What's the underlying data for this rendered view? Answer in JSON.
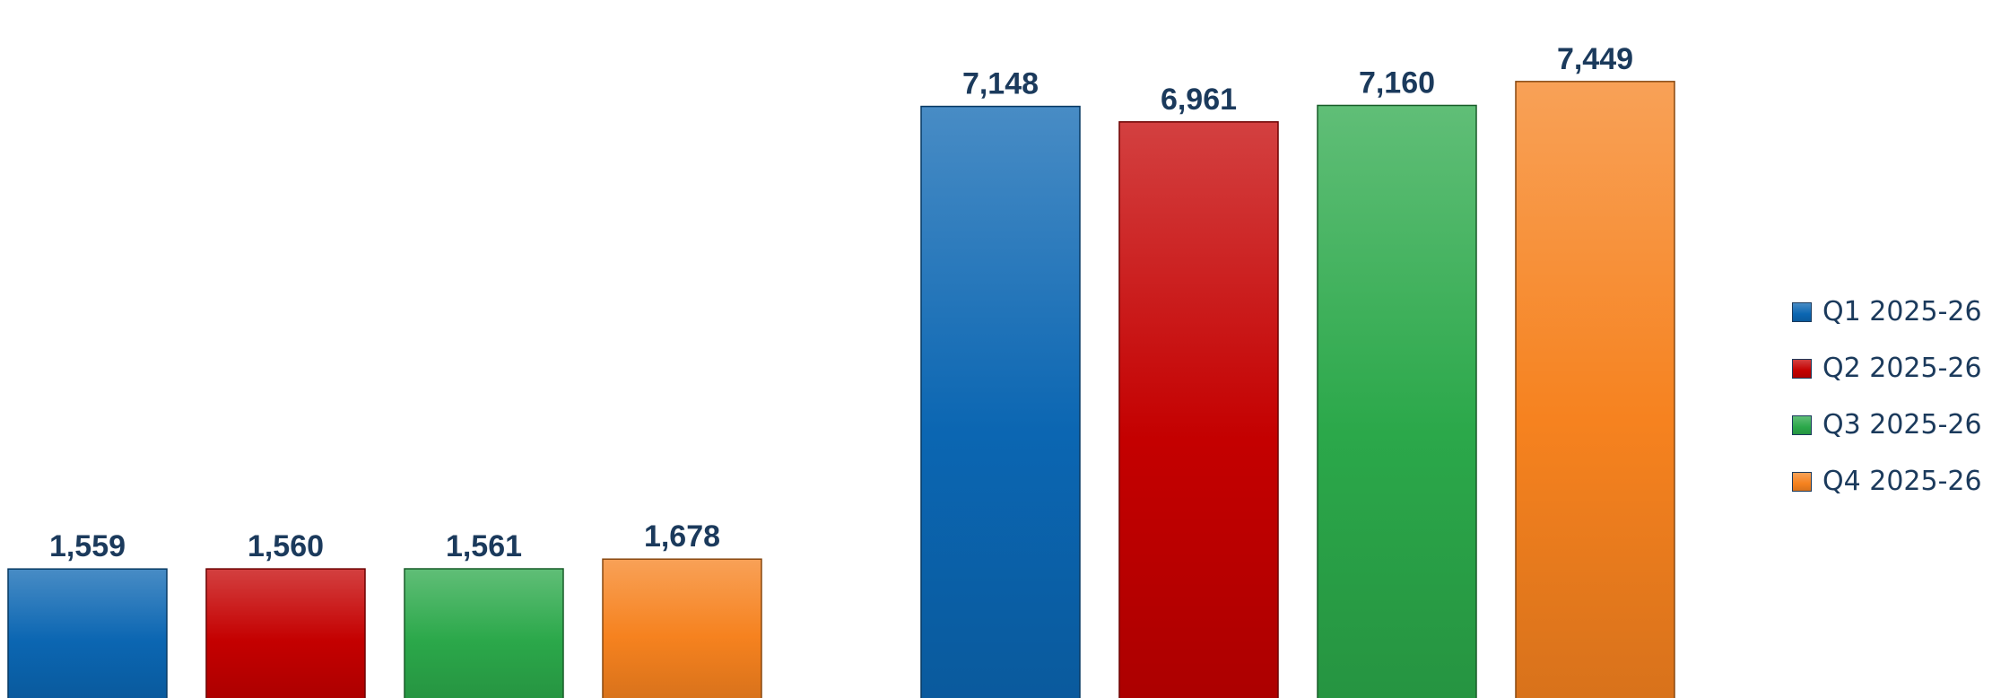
{
  "chart_data": {
    "type": "bar",
    "title": "",
    "xlabel": "",
    "ylabel": "",
    "categories": [
      "",
      ""
    ],
    "series": [
      {
        "name": "Q1 2025-26",
        "color": "#0b66b2",
        "values": [
          1559,
          7148
        ]
      },
      {
        "name": "Q2 2025-26",
        "color": "#c40000",
        "values": [
          1560,
          6961
        ]
      },
      {
        "name": "Q3 2025-26",
        "color": "#2ba84a",
        "values": [
          1561,
          7160
        ]
      },
      {
        "name": "Q4 2025-26",
        "color": "#f6821f",
        "values": [
          1678,
          7449
        ]
      }
    ],
    "value_labels": [
      [
        "1,559",
        "7,148"
      ],
      [
        "1,560",
        "6,961"
      ],
      [
        "1,561",
        "7,160"
      ],
      [
        "1,678",
        "7,449"
      ]
    ],
    "legend_position": "right",
    "grid": false
  },
  "legend": {
    "items": [
      {
        "label": "Q1 2025-26",
        "color": "#0b66b2"
      },
      {
        "label": "Q2 2025-26",
        "color": "#c40000"
      },
      {
        "label": "Q3 2025-26",
        "color": "#2ba84a"
      },
      {
        "label": "Q4 2025-26",
        "color": "#f6821f"
      }
    ]
  }
}
